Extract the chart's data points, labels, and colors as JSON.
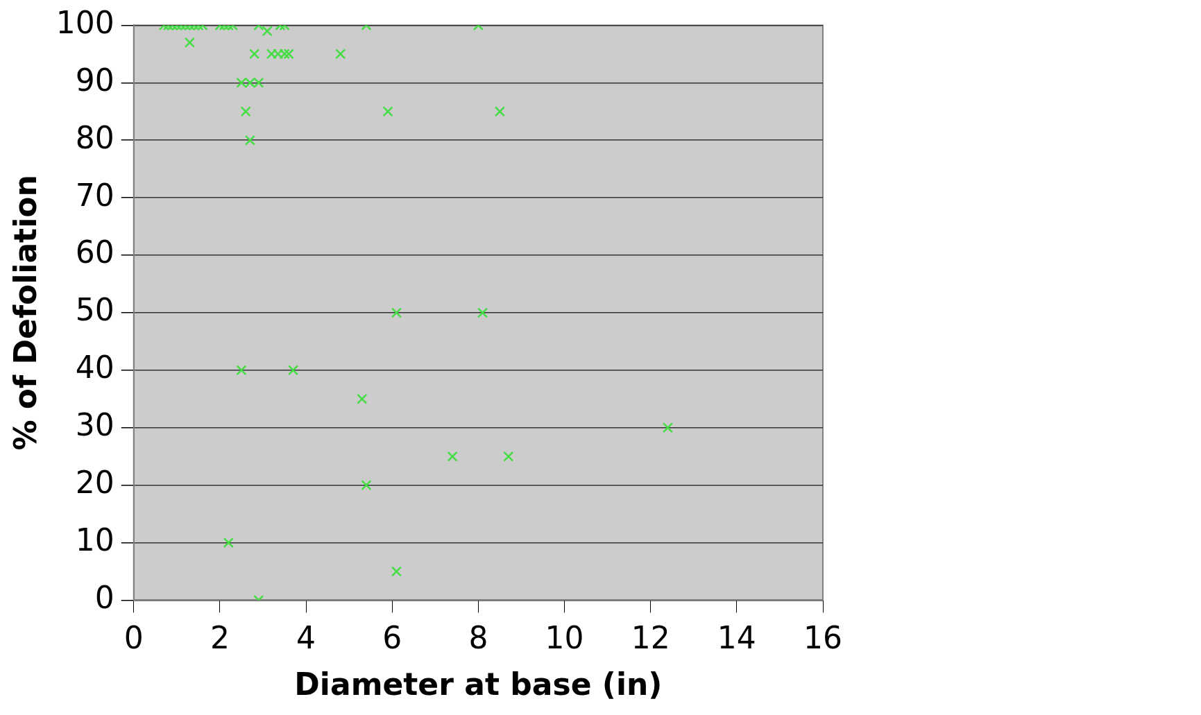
{
  "chart_data": {
    "type": "scatter",
    "xlabel": "Diameter at base (in)",
    "ylabel": "% of Defoliation",
    "x": [
      0.7,
      0.8,
      0.9,
      1.0,
      1.1,
      1.2,
      1.3,
      1.4,
      1.5,
      1.6,
      2.0,
      2.1,
      2.2,
      2.3,
      2.9,
      3.4,
      3.5,
      5.4,
      8.0,
      3.1,
      1.3,
      2.8,
      3.2,
      3.35,
      3.5,
      3.6,
      4.8,
      2.5,
      2.7,
      2.9,
      2.6,
      5.9,
      8.5,
      2.7,
      6.1,
      8.1,
      2.5,
      3.7,
      5.3,
      12.4,
      7.4,
      8.7,
      5.4,
      2.2,
      6.1,
      2.9
    ],
    "series": [
      {
        "color": "#44dd44",
        "values": [
          100,
          100,
          100,
          100,
          100,
          100,
          100,
          100,
          100,
          100,
          100,
          100,
          100,
          100,
          100,
          100,
          100,
          100,
          100,
          99,
          97,
          95,
          95,
          95,
          95,
          95,
          95,
          90,
          90,
          90,
          85,
          85,
          85,
          80,
          50,
          50,
          40,
          40,
          35,
          30,
          25,
          25,
          20,
          10,
          5,
          0
        ]
      }
    ],
    "marker": "cross",
    "grid": "y",
    "legend": false,
    "xlim": [
      0,
      16
    ],
    "xticks": [
      0,
      2,
      4,
      6,
      8,
      10,
      12,
      14,
      16
    ],
    "ylim": [
      0,
      100
    ],
    "yticks": [
      0,
      10,
      20,
      30,
      40,
      50,
      60,
      70,
      80,
      90,
      100
    ]
  }
}
